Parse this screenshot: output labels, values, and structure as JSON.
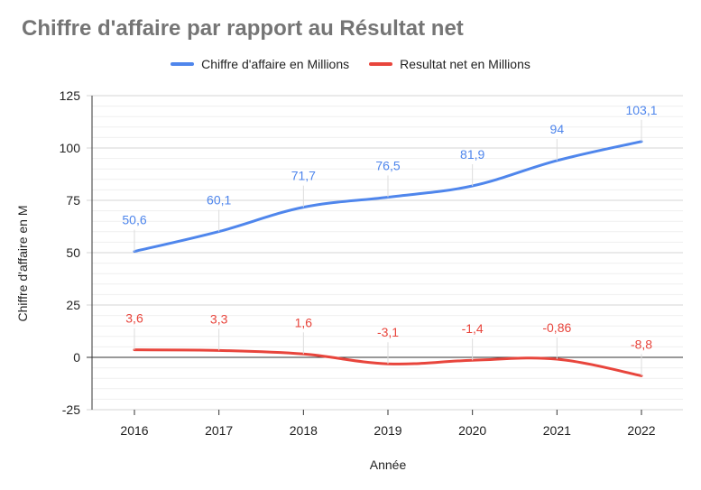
{
  "chart_data": {
    "type": "line",
    "title": "Chiffre d'affaire par rapport au Résultat net",
    "xlabel": "Année",
    "ylabel": "Chiffre d'affaire en M",
    "ylim": [
      -25,
      125
    ],
    "yticks": [
      "-25",
      "0",
      "25",
      "50",
      "75",
      "100",
      "125"
    ],
    "categories": [
      "2016",
      "2017",
      "2018",
      "2019",
      "2020",
      "2021",
      "2022"
    ],
    "legend_position": "top",
    "grid": true,
    "series": [
      {
        "name": "Chiffre d'affaire en Millions",
        "color": "#4f86ec",
        "values": [
          50.6,
          60.1,
          71.7,
          76.5,
          81.9,
          94,
          103.1
        ],
        "labels": [
          "50,6",
          "60,1",
          "71,7",
          "76,5",
          "81,9",
          "94",
          "103,1"
        ]
      },
      {
        "name": "Resultat net en Millions",
        "color": "#e8453c",
        "values": [
          3.6,
          3.3,
          1.6,
          -3.1,
          -1.4,
          -0.86,
          -8.8
        ],
        "labels": [
          "3,6",
          "3,3",
          "1,6",
          "-3,1",
          "-1,4",
          "-0,86",
          "-8,8"
        ]
      }
    ]
  }
}
